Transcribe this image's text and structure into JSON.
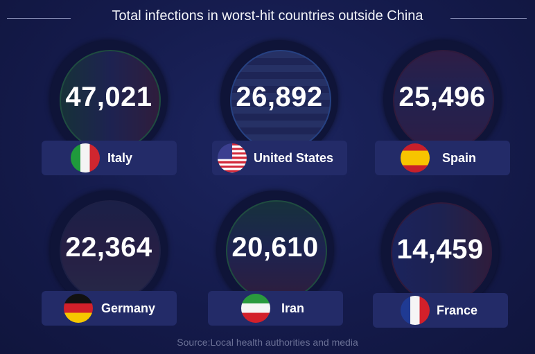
{
  "chart_data": {
    "type": "table",
    "title": "Total infections in worst-hit countries outside China",
    "categories": [
      "Italy",
      "United States",
      "Spain",
      "Germany",
      "Iran",
      "France"
    ],
    "values": [
      "47,021",
      "26,892",
      "25,496",
      "22,364",
      "20,610",
      "14,459"
    ],
    "flags": [
      "italy-flag",
      "us-flag",
      "spain-flag",
      "germany-flag",
      "iran-flag",
      "france-flag"
    ],
    "source": "Source:Local health authorities and media"
  },
  "colors": {
    "background": "#141a4a",
    "label_bg": "#232b68",
    "source_text": "#6b7196"
  }
}
